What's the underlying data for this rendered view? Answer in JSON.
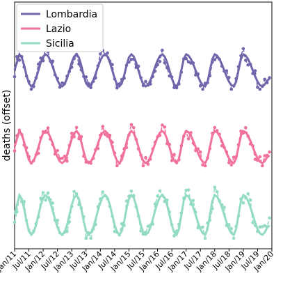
{
  "chart_data": {
    "type": "line",
    "title": "",
    "xlabel": "",
    "ylabel": "deaths (offset)",
    "x_ticks": [
      "Jan/11",
      "Jul/11",
      "Jan/12",
      "Jul/12",
      "Jan/13",
      "Jul/13",
      "Jan/14",
      "Jul/14",
      "Jan/15",
      "Jul/15",
      "Jan/16",
      "Jul/16",
      "Jan/17",
      "Jul/17",
      "Jan/18",
      "Jul/18",
      "Jan/19",
      "Jul/19",
      "Jan/20"
    ],
    "x_range": [
      "2011-01",
      "2020-01"
    ],
    "grid": false,
    "legend_position": "top-left",
    "note": "y axis has no tick labels; each region's series is vertically offset; the fitted model (solid) and observed counts (dashed, dots) share a colour per region",
    "series": [
      {
        "name": "Lombardia",
        "color": "#6f66ac",
        "peaks": [
          "2011-03",
          "2012-02",
          "2013-03",
          "2014-03",
          "2015-02",
          "2016-03",
          "2017-01",
          "2018-01",
          "2019-01"
        ],
        "troughs": [
          "2011-08",
          "2012-09",
          "2013-08",
          "2014-09",
          "2015-08",
          "2016-09",
          "2017-09",
          "2018-09",
          "2019-09"
        ]
      },
      {
        "name": "Lazio",
        "color": "#f0719b",
        "peaks": [
          "2011-03",
          "2012-02",
          "2013-03",
          "2014-03",
          "2015-02",
          "2016-03",
          "2017-01",
          "2018-01",
          "2019-01"
        ],
        "troughs": [
          "2011-08",
          "2012-09",
          "2013-08",
          "2014-09",
          "2015-08",
          "2016-09",
          "2017-09",
          "2018-09",
          "2019-09"
        ]
      },
      {
        "name": "Sicilia",
        "color": "#94dbc5",
        "peaks": [
          "2011-03",
          "2012-02",
          "2013-03",
          "2014-03",
          "2015-02",
          "2016-03",
          "2017-01",
          "2018-01",
          "2019-01"
        ],
        "troughs": [
          "2011-08",
          "2012-09",
          "2013-08",
          "2014-09",
          "2015-08",
          "2016-09",
          "2017-09",
          "2018-09",
          "2019-09"
        ]
      }
    ]
  }
}
